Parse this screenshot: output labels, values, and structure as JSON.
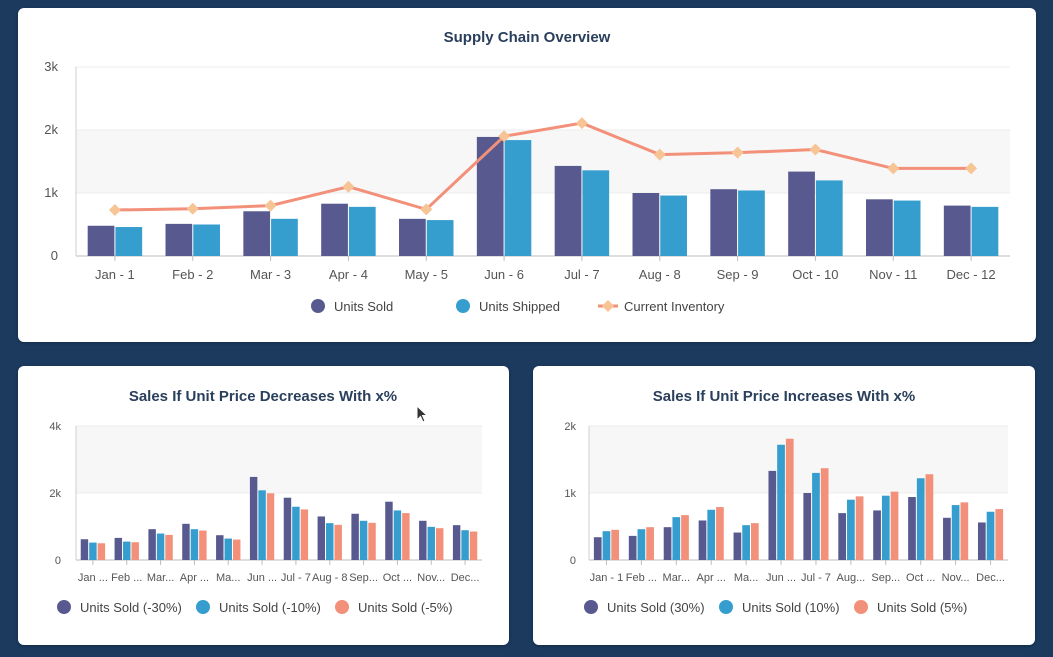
{
  "chart_data": [
    {
      "type": "bar",
      "title": "Supply Chain Overview",
      "categories": [
        "Jan - 1",
        "Feb - 2",
        "Mar - 3",
        "Apr - 4",
        "May - 5",
        "Jun - 6",
        "Jul - 7",
        "Aug - 8",
        "Sep - 9",
        "Oct - 10",
        "Nov - 11",
        "Dec - 12"
      ],
      "series": [
        {
          "name": "Units Sold",
          "type": "bar",
          "color": "#585a8f",
          "values": [
            480,
            510,
            710,
            830,
            590,
            1890,
            1430,
            1000,
            1060,
            1340,
            900,
            800
          ]
        },
        {
          "name": "Units Shipped",
          "type": "bar",
          "color": "#369ece",
          "values": [
            460,
            500,
            590,
            780,
            570,
            1840,
            1360,
            960,
            1040,
            1200,
            880,
            780
          ]
        },
        {
          "name": "Current Inventory",
          "type": "line",
          "color": "#f2907a",
          "marker_color": "#f7c496",
          "values": [
            730,
            750,
            800,
            1100,
            740,
            1900,
            2110,
            1610,
            1640,
            1690,
            1390,
            1390
          ]
        }
      ],
      "yticks": [
        "0",
        "1k",
        "2k",
        "3k"
      ],
      "ylim": [
        0,
        3000
      ],
      "legend": "bottom",
      "grid": true
    },
    {
      "type": "bar",
      "title": "Sales If Unit Price Decreases With x%",
      "categories": [
        "Jan ...",
        "Feb ...",
        "Mar...",
        "Apr ...",
        "Ma...",
        "Jun ...",
        "Jul - 7",
        "Aug - 8",
        "Sep...",
        "Oct ...",
        "Nov...",
        "Dec..."
      ],
      "series": [
        {
          "name": "Units Sold (-30%)",
          "color": "#585a8f",
          "values": [
            620,
            660,
            920,
            1080,
            740,
            2480,
            1860,
            1300,
            1380,
            1740,
            1170,
            1040
          ]
        },
        {
          "name": "Units Sold (-10%)",
          "color": "#369ece",
          "values": [
            520,
            550,
            790,
            920,
            640,
            2080,
            1590,
            1100,
            1170,
            1480,
            990,
            890
          ]
        },
        {
          "name": "Units Sold (-5%)",
          "color": "#f2907a",
          "values": [
            500,
            530,
            750,
            880,
            610,
            1990,
            1510,
            1050,
            1110,
            1400,
            950,
            850
          ]
        }
      ],
      "yticks": [
        "0",
        "2k",
        "4k"
      ],
      "ylim": [
        0,
        4000
      ],
      "legend": "bottom",
      "grid": true
    },
    {
      "type": "bar",
      "title": "Sales If Unit Price Increases With x%",
      "categories": [
        "Jan - 1",
        "Feb ...",
        "Mar...",
        "Apr ...",
        "Ma...",
        "Jun ...",
        "Jul - 7",
        "Aug...",
        "Sep...",
        "Oct ...",
        "Nov...",
        "Dec..."
      ],
      "series": [
        {
          "name": "Units Sold (30%)",
          "color": "#585a8f",
          "values": [
            340,
            360,
            490,
            590,
            410,
            1330,
            1000,
            700,
            740,
            940,
            630,
            560
          ]
        },
        {
          "name": "Units Sold (10%)",
          "color": "#369ece",
          "values": [
            430,
            460,
            640,
            750,
            520,
            1720,
            1300,
            900,
            960,
            1220,
            820,
            720
          ]
        },
        {
          "name": "Units Sold (5%)",
          "color": "#f2907a",
          "values": [
            450,
            490,
            670,
            790,
            550,
            1810,
            1370,
            950,
            1020,
            1280,
            860,
            760
          ]
        }
      ],
      "yticks": [
        "0",
        "1k",
        "2k"
      ],
      "ylim": [
        0,
        2000
      ],
      "legend": "bottom",
      "grid": true
    }
  ]
}
